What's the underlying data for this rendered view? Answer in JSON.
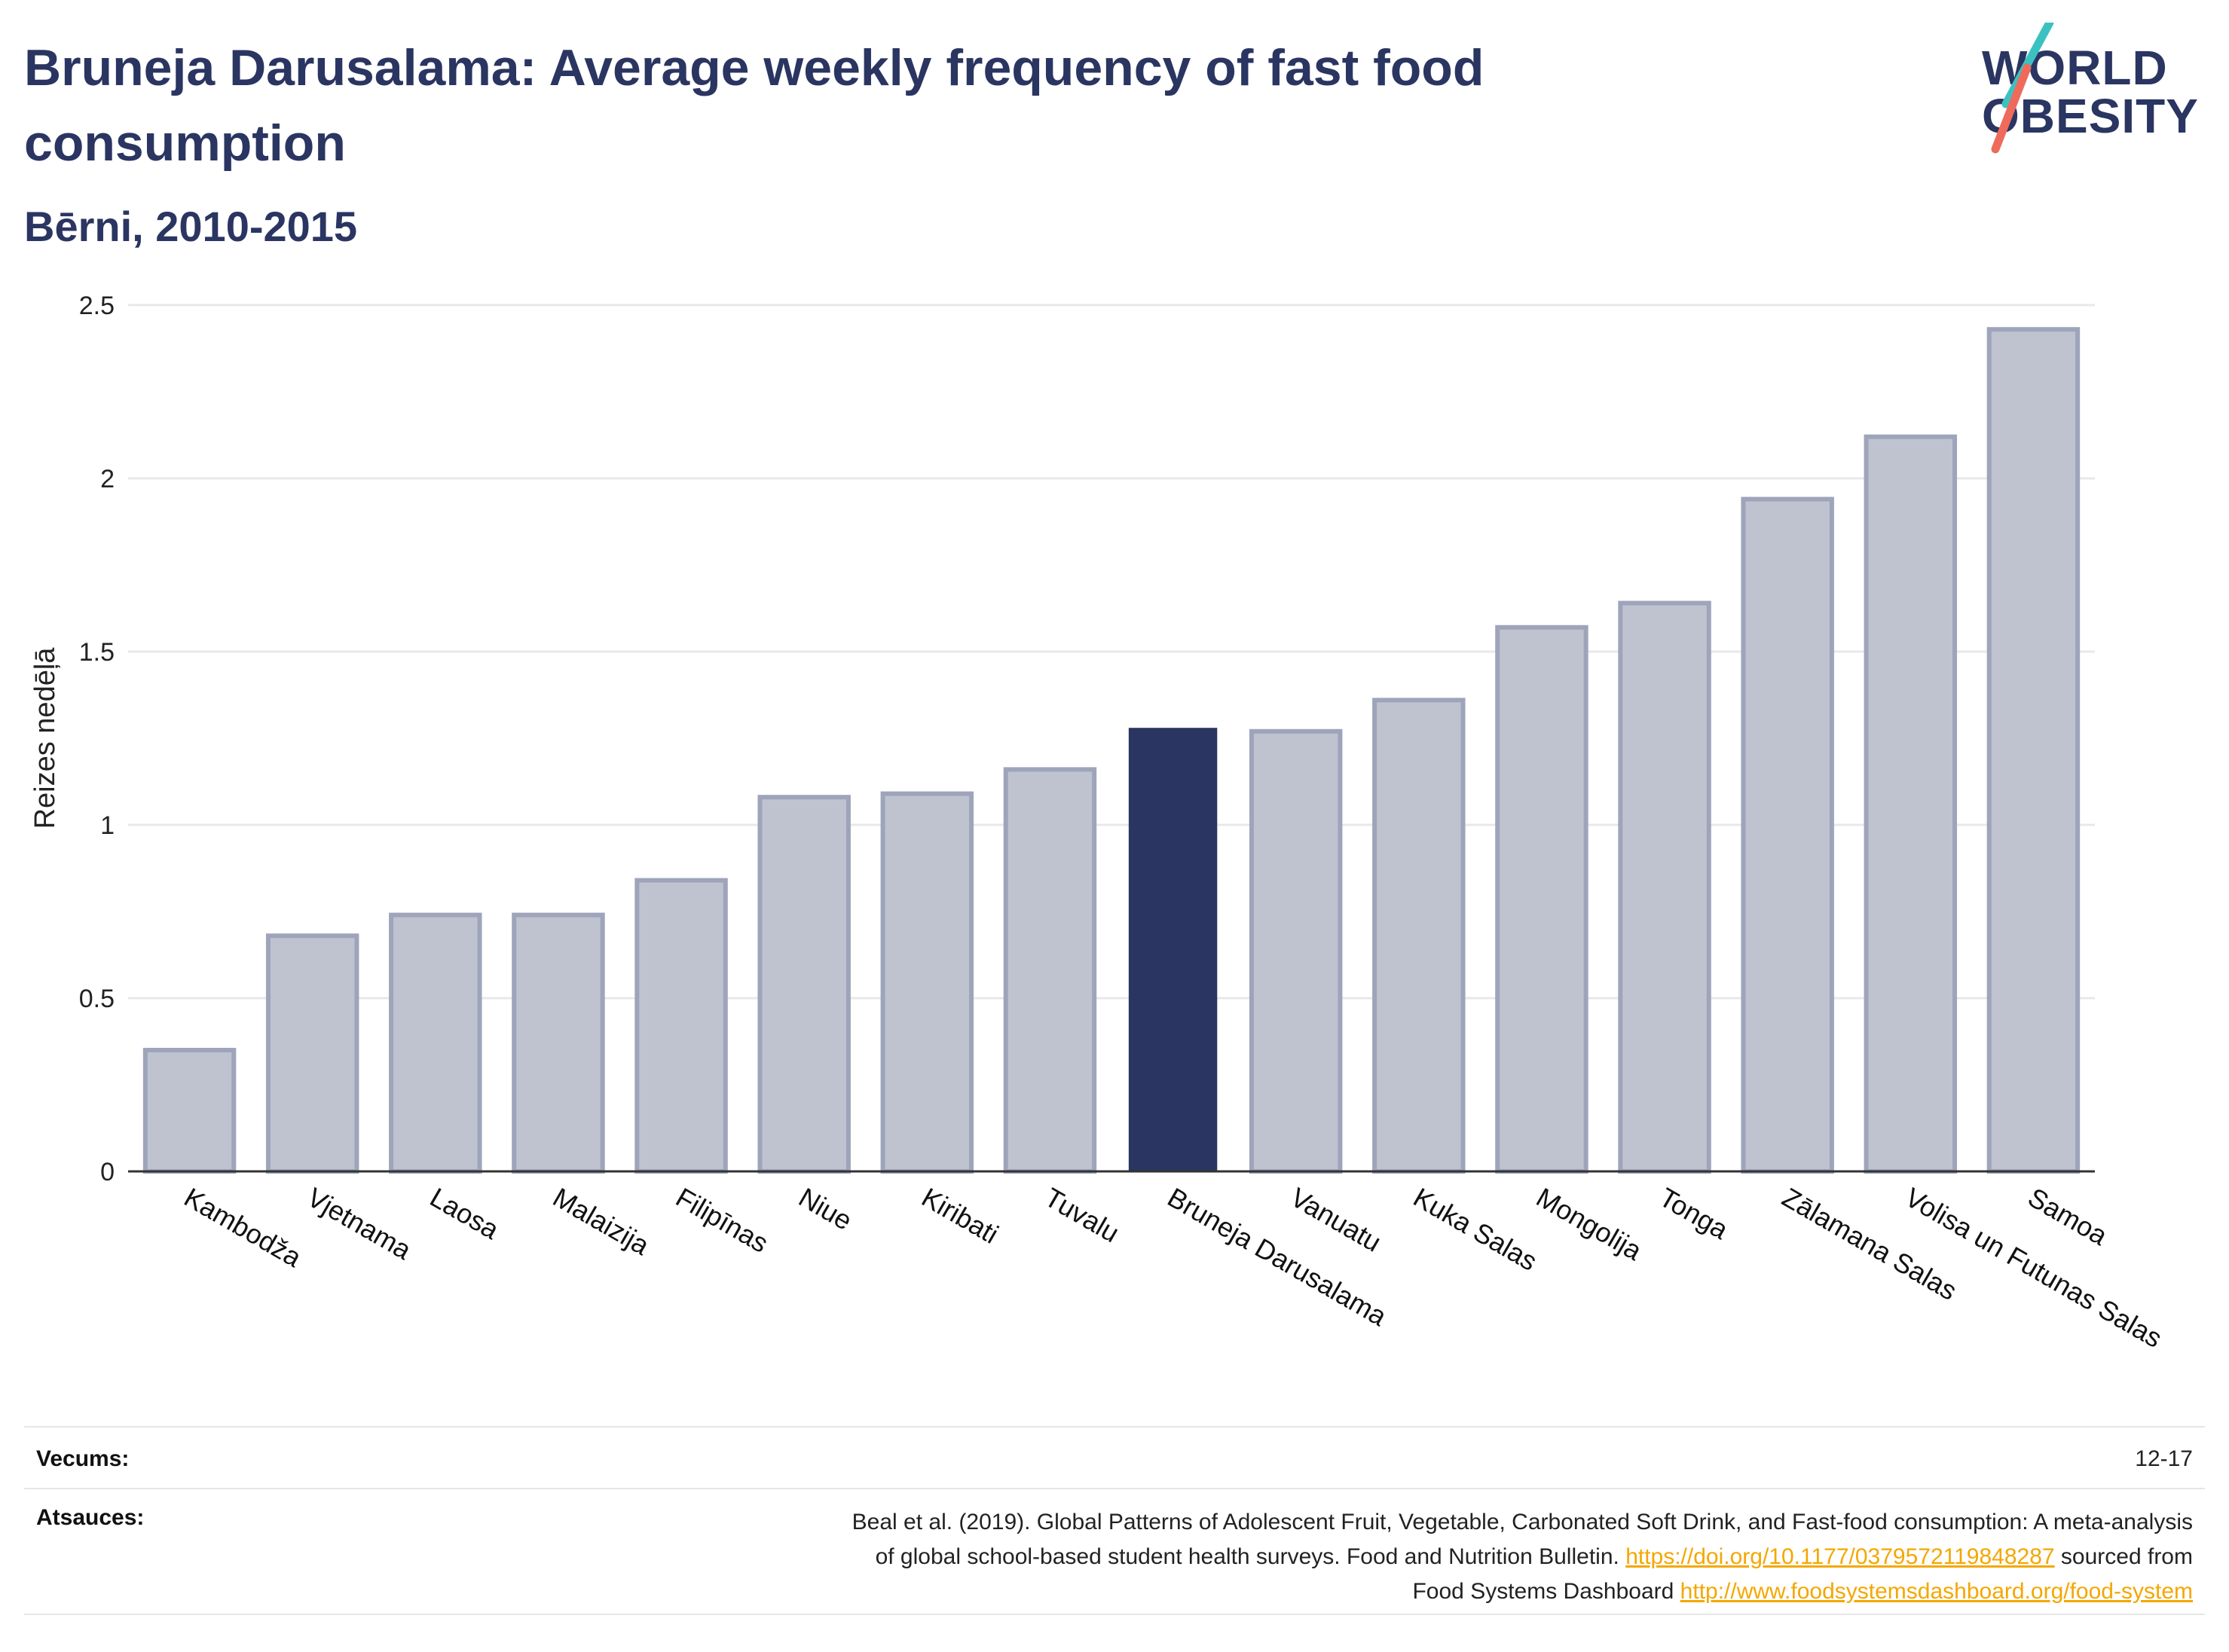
{
  "title": "Bruneja Darusalama: Average weekly frequency of fast food consumption",
  "subtitle": "Bērni, 2010-2015",
  "logo": {
    "line1": "WORLD",
    "line2": "OBESITY"
  },
  "colors": {
    "highlight": "#2a3561",
    "bar": "#bfc3d0",
    "bar_stroke": "#9ea4ba",
    "grid": "#e8e8e8",
    "link": "#f4a700"
  },
  "chart_data": {
    "type": "bar",
    "ylabel": "Reizes nedēļā",
    "ylim": [
      0,
      2.5
    ],
    "yticks": [
      0,
      0.5,
      1,
      1.5,
      2,
      2.5
    ],
    "ytick_labels": [
      "0",
      "0.5",
      "1",
      "1.5",
      "2",
      "2.5"
    ],
    "highlight": "Bruneja Darusalama",
    "categories": [
      "Kambodža",
      "Vjetnama",
      "Laosa",
      "Malaizija",
      "Filipīnas",
      "Niue",
      "Kiribati",
      "Tuvalu",
      "Bruneja Darusalama",
      "Vanuatu",
      "Kuka Salas",
      "Mongolija",
      "Tonga",
      "Zālamana Salas",
      "Volisa un Futunas Salas",
      "Samoa"
    ],
    "values": [
      0.35,
      0.68,
      0.74,
      0.74,
      0.84,
      1.08,
      1.09,
      1.16,
      1.28,
      1.27,
      1.36,
      1.57,
      1.64,
      1.94,
      2.12,
      2.43
    ]
  },
  "footer": {
    "age_label": "Vecums:",
    "age_value": "12-17",
    "sources_label": "Atsauces:",
    "source_line1": "Beal et al. (2019). Global Patterns of Adolescent Fruit, Vegetable, Carbonated Soft Drink, and Fast-food consumption: A meta-analysis",
    "source_line2_text": "of global school-based student health surveys. Food and Nutrition Bulletin.",
    "source_link1": "https://doi.org/10.1177/0379572119848287",
    "source_line2_suffix": "sourced from",
    "source_line3_text": "Food Systems Dashboard",
    "source_link2": "http://www.foodsystemsdashboard.org/food-system"
  }
}
